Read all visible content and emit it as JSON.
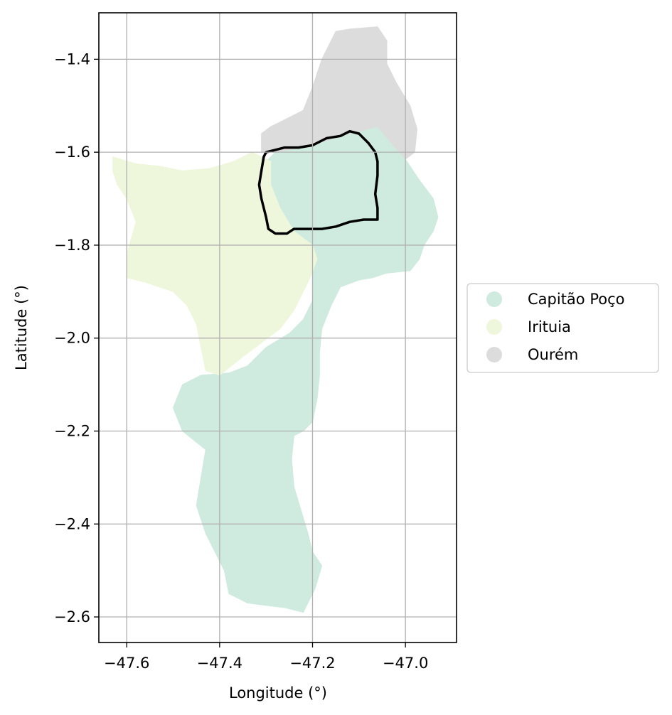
{
  "chart_data": {
    "type": "map",
    "xlabel": "Longitude (°)",
    "ylabel": "Latitude (°)",
    "xlim": [
      -47.66,
      -46.89
    ],
    "ylim": [
      -2.655,
      -1.3
    ],
    "grid": true,
    "x_ticks": [
      {
        "value": -47.6,
        "label": "−47.6"
      },
      {
        "value": -47.4,
        "label": "−47.4"
      },
      {
        "value": -47.2,
        "label": "−47.2"
      },
      {
        "value": -47.0,
        "label": "−47.0"
      }
    ],
    "y_ticks": [
      {
        "value": -1.4,
        "label": "−1.4"
      },
      {
        "value": -1.6,
        "label": "−1.6"
      },
      {
        "value": -1.8,
        "label": "−1.8"
      },
      {
        "value": -2.0,
        "label": "−2.0"
      },
      {
        "value": -2.2,
        "label": "−2.2"
      },
      {
        "value": -2.4,
        "label": "−2.4"
      },
      {
        "value": -2.6,
        "label": "−2.6"
      }
    ],
    "legend_position": "right",
    "regions": [
      {
        "name": "Capitão Poço",
        "color": "#cfeade",
        "polygon": [
          [
            -47.28,
            -1.6
          ],
          [
            -47.2,
            -1.585
          ],
          [
            -47.14,
            -1.565
          ],
          [
            -47.1,
            -1.555
          ],
          [
            -47.06,
            -1.545
          ],
          [
            -47.03,
            -1.58
          ],
          [
            -47.0,
            -1.615
          ],
          [
            -46.97,
            -1.66
          ],
          [
            -46.94,
            -1.7
          ],
          [
            -46.93,
            -1.74
          ],
          [
            -46.94,
            -1.77
          ],
          [
            -46.96,
            -1.8
          ],
          [
            -46.97,
            -1.83
          ],
          [
            -46.99,
            -1.855
          ],
          [
            -47.04,
            -1.86
          ],
          [
            -47.07,
            -1.87
          ],
          [
            -47.1,
            -1.875
          ],
          [
            -47.14,
            -1.89
          ],
          [
            -47.16,
            -1.93
          ],
          [
            -47.18,
            -1.98
          ],
          [
            -47.185,
            -2.03
          ],
          [
            -47.185,
            -2.08
          ],
          [
            -47.19,
            -2.13
          ],
          [
            -47.2,
            -2.18
          ],
          [
            -47.22,
            -2.2
          ],
          [
            -47.24,
            -2.21
          ],
          [
            -47.245,
            -2.26
          ],
          [
            -47.24,
            -2.32
          ],
          [
            -47.225,
            -2.37
          ],
          [
            -47.21,
            -2.42
          ],
          [
            -47.2,
            -2.46
          ],
          [
            -47.18,
            -2.49
          ],
          [
            -47.195,
            -2.54
          ],
          [
            -47.22,
            -2.59
          ],
          [
            -47.26,
            -2.58
          ],
          [
            -47.3,
            -2.575
          ],
          [
            -47.34,
            -2.57
          ],
          [
            -47.38,
            -2.55
          ],
          [
            -47.39,
            -2.5
          ],
          [
            -47.41,
            -2.46
          ],
          [
            -47.43,
            -2.42
          ],
          [
            -47.45,
            -2.36
          ],
          [
            -47.44,
            -2.3
          ],
          [
            -47.43,
            -2.24
          ],
          [
            -47.48,
            -2.2
          ],
          [
            -47.5,
            -2.15
          ],
          [
            -47.48,
            -2.1
          ],
          [
            -47.44,
            -2.08
          ],
          [
            -47.38,
            -2.075
          ],
          [
            -47.34,
            -2.06
          ],
          [
            -47.3,
            -2.02
          ],
          [
            -47.25,
            -1.99
          ],
          [
            -47.22,
            -1.96
          ],
          [
            -47.2,
            -1.92
          ],
          [
            -47.2,
            -1.86
          ],
          [
            -47.2,
            -1.82
          ],
          [
            -47.24,
            -1.8
          ],
          [
            -47.27,
            -1.77
          ],
          [
            -47.29,
            -1.72
          ],
          [
            -47.31,
            -1.67
          ],
          [
            -47.3,
            -1.62
          ]
        ]
      },
      {
        "name": "Irituia",
        "color": "#eef7dc",
        "polygon": [
          [
            -47.63,
            -1.61
          ],
          [
            -47.58,
            -1.625
          ],
          [
            -47.53,
            -1.63
          ],
          [
            -47.48,
            -1.64
          ],
          [
            -47.42,
            -1.635
          ],
          [
            -47.37,
            -1.62
          ],
          [
            -47.33,
            -1.6
          ],
          [
            -47.29,
            -1.62
          ],
          [
            -47.29,
            -1.67
          ],
          [
            -47.27,
            -1.72
          ],
          [
            -47.24,
            -1.77
          ],
          [
            -47.2,
            -1.8
          ],
          [
            -47.19,
            -1.83
          ],
          [
            -47.205,
            -1.87
          ],
          [
            -47.22,
            -1.9
          ],
          [
            -47.24,
            -1.94
          ],
          [
            -47.27,
            -1.98
          ],
          [
            -47.31,
            -2.01
          ],
          [
            -47.35,
            -2.04
          ],
          [
            -47.4,
            -2.08
          ],
          [
            -47.43,
            -2.07
          ],
          [
            -47.44,
            -2.02
          ],
          [
            -47.45,
            -1.97
          ],
          [
            -47.47,
            -1.93
          ],
          [
            -47.5,
            -1.9
          ],
          [
            -47.56,
            -1.88
          ],
          [
            -47.6,
            -1.87
          ],
          [
            -47.6,
            -1.82
          ],
          [
            -47.58,
            -1.75
          ],
          [
            -47.6,
            -1.7
          ],
          [
            -47.62,
            -1.67
          ],
          [
            -47.63,
            -1.64
          ]
        ]
      },
      {
        "name": "Ourém",
        "color": "#dcdcdc",
        "polygon": [
          [
            -47.31,
            -1.56
          ],
          [
            -47.29,
            -1.545
          ],
          [
            -47.26,
            -1.53
          ],
          [
            -47.22,
            -1.51
          ],
          [
            -47.2,
            -1.46
          ],
          [
            -47.18,
            -1.4
          ],
          [
            -47.15,
            -1.34
          ],
          [
            -47.12,
            -1.335
          ],
          [
            -47.06,
            -1.33
          ],
          [
            -47.04,
            -1.36
          ],
          [
            -47.04,
            -1.41
          ],
          [
            -47.02,
            -1.45
          ],
          [
            -46.99,
            -1.5
          ],
          [
            -46.975,
            -1.55
          ],
          [
            -46.98,
            -1.6
          ],
          [
            -47.0,
            -1.615
          ],
          [
            -47.03,
            -1.58
          ],
          [
            -47.06,
            -1.545
          ],
          [
            -47.1,
            -1.555
          ],
          [
            -47.14,
            -1.565
          ],
          [
            -47.2,
            -1.585
          ],
          [
            -47.28,
            -1.6
          ],
          [
            -47.31,
            -1.6
          ]
        ]
      }
    ],
    "outline": {
      "color": "#000000",
      "polygon": [
        [
          -47.3,
          -1.6
        ],
        [
          -47.28,
          -1.595
        ],
        [
          -47.26,
          -1.59
        ],
        [
          -47.23,
          -1.59
        ],
        [
          -47.2,
          -1.585
        ],
        [
          -47.17,
          -1.57
        ],
        [
          -47.14,
          -1.565
        ],
        [
          -47.12,
          -1.555
        ],
        [
          -47.1,
          -1.56
        ],
        [
          -47.08,
          -1.58
        ],
        [
          -47.065,
          -1.6
        ],
        [
          -47.06,
          -1.62
        ],
        [
          -47.06,
          -1.65
        ],
        [
          -47.065,
          -1.69
        ],
        [
          -47.06,
          -1.72
        ],
        [
          -47.06,
          -1.745
        ],
        [
          -47.09,
          -1.745
        ],
        [
          -47.12,
          -1.75
        ],
        [
          -47.15,
          -1.76
        ],
        [
          -47.18,
          -1.765
        ],
        [
          -47.21,
          -1.765
        ],
        [
          -47.24,
          -1.765
        ],
        [
          -47.255,
          -1.775
        ],
        [
          -47.28,
          -1.775
        ],
        [
          -47.295,
          -1.765
        ],
        [
          -47.3,
          -1.74
        ],
        [
          -47.31,
          -1.7
        ],
        [
          -47.315,
          -1.67
        ],
        [
          -47.31,
          -1.64
        ],
        [
          -47.305,
          -1.61
        ]
      ]
    }
  },
  "legend": {
    "items": [
      {
        "label": "Capitão Poço",
        "color": "#cfeade"
      },
      {
        "label": "Irituia",
        "color": "#eef7dc"
      },
      {
        "label": "Ourém",
        "color": "#dcdcdc"
      }
    ]
  }
}
